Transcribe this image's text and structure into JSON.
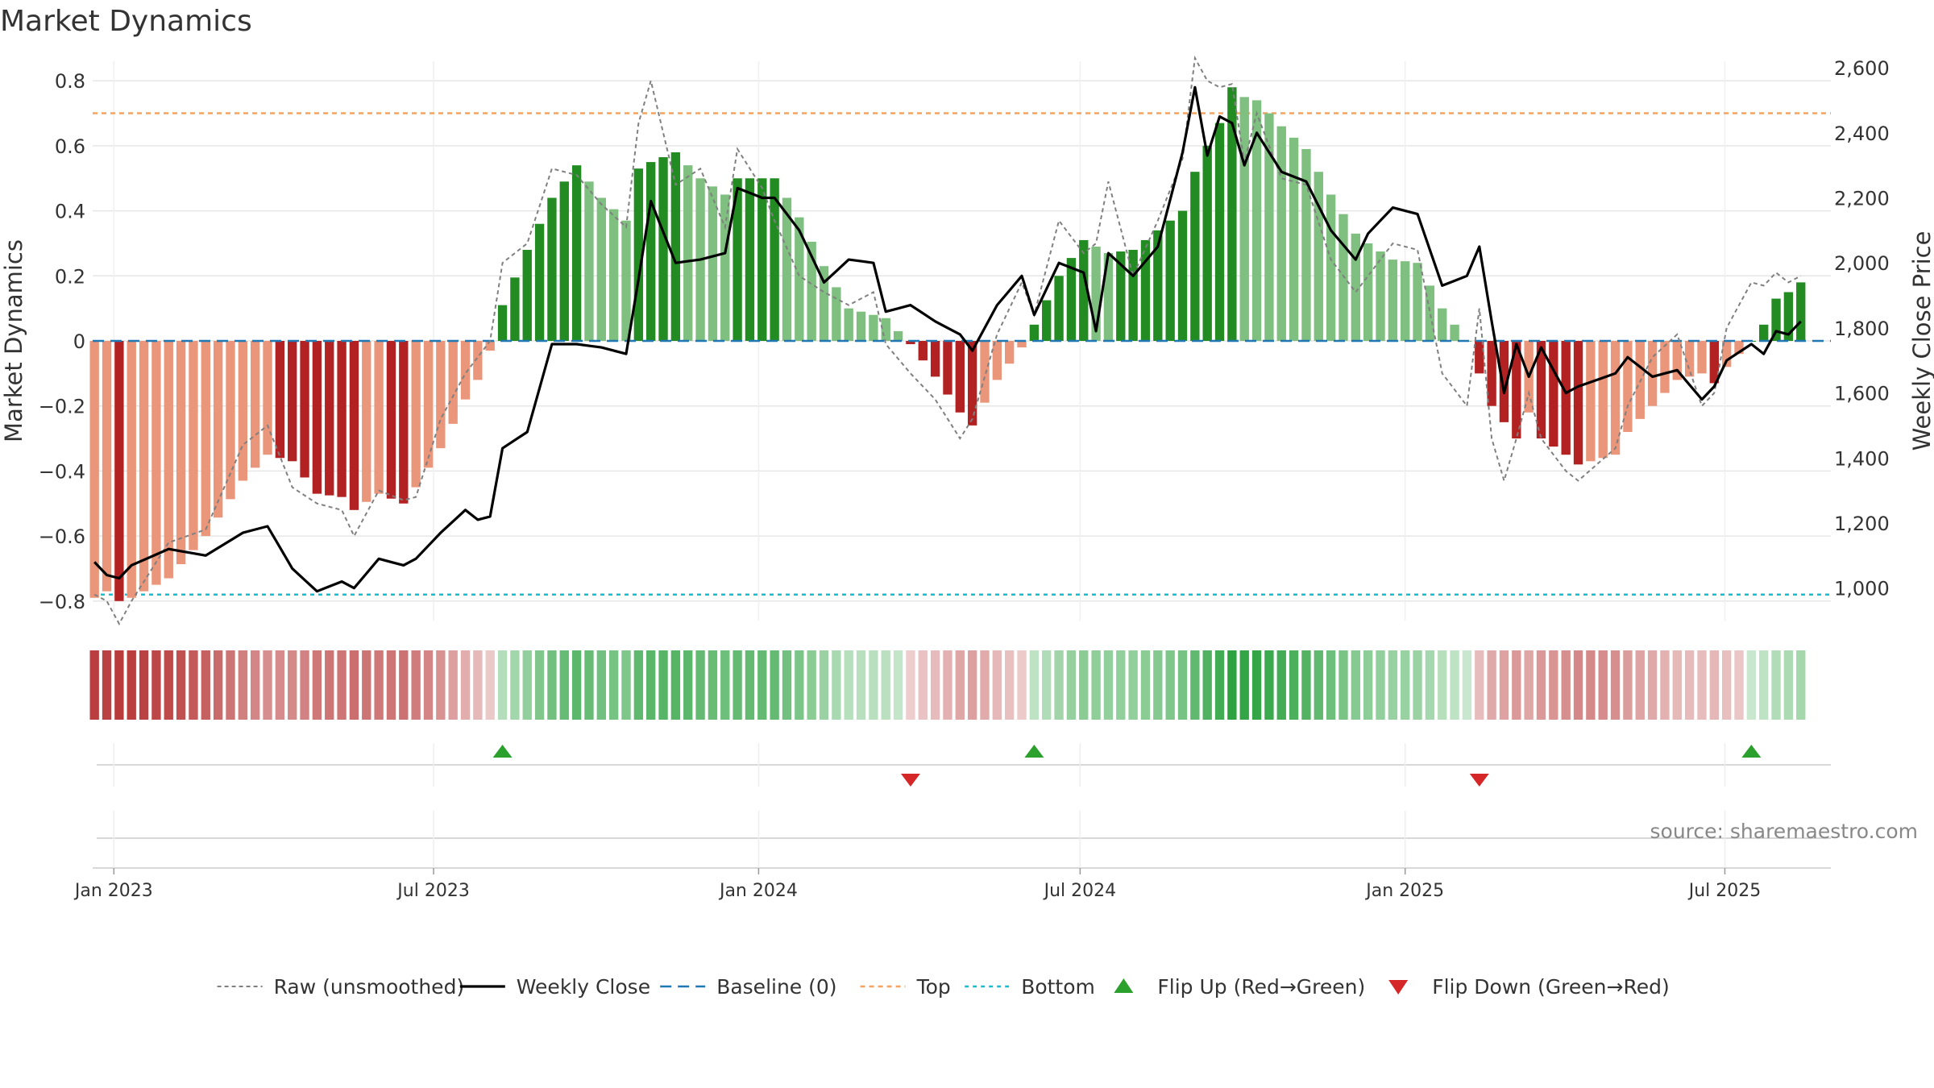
{
  "title": "Market Dynamics",
  "source": "source: sharemaestro.com",
  "colors": {
    "green_strong": "#228B22",
    "green_light": "#7FBF7F",
    "red_strong": "#B22222",
    "red_light": "#E9967A",
    "close_line": "#000000",
    "raw_line": "#808080",
    "baseline": "#1F77B4",
    "top": "#F4A460",
    "bottom": "#17BECF",
    "flip_up": "#2CA02C",
    "flip_down": "#D62728",
    "grid": "#E6E6E6",
    "axis_text": "#333333"
  },
  "chart_data": {
    "type": "bar",
    "title": "Market Dynamics",
    "ylabel": "Market Dynamics",
    "y2label": "Weekly Close Price",
    "ylim": [
      -0.86,
      0.86
    ],
    "y2lim": [
      900,
      2620
    ],
    "yticks": [
      -0.8,
      -0.6,
      -0.4,
      -0.2,
      0,
      0.2,
      0.4,
      0.6,
      0.8
    ],
    "yticklabels": [
      "−0.8",
      "−0.6",
      "−0.4",
      "−0.2",
      "0",
      "0.2",
      "0.4",
      "0.6",
      "0.8"
    ],
    "y2ticks": [
      1000,
      1200,
      1400,
      1600,
      1800,
      2000,
      2200,
      2400,
      2600
    ],
    "y2ticklabels": [
      "1,000",
      "1,200",
      "1,400",
      "1,600",
      "1,800",
      "2,000",
      "2,200",
      "2,400",
      "2,600"
    ],
    "xrange": [
      "2022-12-20",
      "2025-08-30"
    ],
    "xticks": [
      "2023-01-01",
      "2023-07-01",
      "2024-01-01",
      "2024-07-01",
      "2025-01-01",
      "2025-07-01"
    ],
    "xticklabels": [
      "Jan 2023",
      "Jul 2023",
      "Jan 2024",
      "Jul 2024",
      "Jan 2025",
      "Jul 2025"
    ],
    "top": 0.7,
    "bottom": -0.78,
    "baseline": 0,
    "grid": true,
    "legend_position": "bottom-center",
    "legend": [
      {
        "label": "Raw (unsmoothed)",
        "style": "raw"
      },
      {
        "label": "Weekly Close",
        "style": "close"
      },
      {
        "label": "Baseline (0)",
        "style": "baseline"
      },
      {
        "label": "Top",
        "style": "top"
      },
      {
        "label": "Bottom",
        "style": "bottom"
      },
      {
        "label": "Flip Up (Red→Green)",
        "style": "flip_up"
      },
      {
        "label": "Flip Down (Green→Red)",
        "style": "flip_down"
      }
    ],
    "anchors": [
      {
        "date": "2022-12-21",
        "md": -0.79,
        "raw": -0.78,
        "close": 1080
      },
      {
        "date": "2022-12-28",
        "md": -0.77,
        "raw": -0.8,
        "close": 1040
      },
      {
        "date": "2023-01-04",
        "md": -0.8,
        "raw": -0.87,
        "close": 1030
      },
      {
        "date": "2023-01-11",
        "md": -0.79,
        "raw": -0.8,
        "close": 1070
      },
      {
        "date": "2023-02-01",
        "md": -0.73,
        "raw": -0.62,
        "close": 1120
      },
      {
        "date": "2023-02-22",
        "md": -0.6,
        "raw": -0.58,
        "close": 1100
      },
      {
        "date": "2023-03-15",
        "md": -0.43,
        "raw": -0.32,
        "close": 1170
      },
      {
        "date": "2023-03-29",
        "md": -0.35,
        "raw": -0.26,
        "close": 1190
      },
      {
        "date": "2023-04-12",
        "md": -0.37,
        "raw": -0.45,
        "close": 1060
      },
      {
        "date": "2023-04-26",
        "md": -0.47,
        "raw": -0.5,
        "close": 990
      },
      {
        "date": "2023-05-10",
        "md": -0.48,
        "raw": -0.52,
        "close": 1020
      },
      {
        "date": "2023-05-17",
        "md": -0.52,
        "raw": -0.6,
        "close": 1000
      },
      {
        "date": "2023-05-31",
        "md": -0.47,
        "raw": -0.46,
        "close": 1090
      },
      {
        "date": "2023-06-14",
        "md": -0.5,
        "raw": -0.49,
        "close": 1070
      },
      {
        "date": "2023-06-21",
        "md": -0.45,
        "raw": -0.48,
        "close": 1090
      },
      {
        "date": "2023-07-05",
        "md": -0.33,
        "raw": -0.24,
        "close": 1170
      },
      {
        "date": "2023-07-19",
        "md": -0.18,
        "raw": -0.1,
        "close": 1240
      },
      {
        "date": "2023-07-26",
        "md": -0.12,
        "raw": -0.05,
        "close": 1210
      },
      {
        "date": "2023-08-02",
        "md": -0.03,
        "raw": 0.0,
        "close": 1220
      },
      {
        "date": "2023-08-09",
        "md": 0.11,
        "raw": 0.24,
        "close": 1430
      },
      {
        "date": "2023-08-23",
        "md": 0.28,
        "raw": 0.3,
        "close": 1480
      },
      {
        "date": "2023-09-06",
        "md": 0.44,
        "raw": 0.53,
        "close": 1750
      },
      {
        "date": "2023-09-20",
        "md": 0.54,
        "raw": 0.51,
        "close": 1750
      },
      {
        "date": "2023-10-04",
        "md": 0.44,
        "raw": 0.42,
        "close": 1740
      },
      {
        "date": "2023-10-18",
        "md": 0.37,
        "raw": 0.35,
        "close": 1720
      },
      {
        "date": "2023-10-25",
        "md": 0.53,
        "raw": 0.67,
        "close": 1950
      },
      {
        "date": "2023-11-01",
        "md": 0.55,
        "raw": 0.8,
        "close": 2190
      },
      {
        "date": "2023-11-15",
        "md": 0.58,
        "raw": 0.48,
        "close": 2000
      },
      {
        "date": "2023-11-29",
        "md": 0.5,
        "raw": 0.53,
        "close": 2010
      },
      {
        "date": "2023-12-13",
        "md": 0.45,
        "raw": 0.35,
        "close": 2030
      },
      {
        "date": "2023-12-20",
        "md": 0.5,
        "raw": 0.59,
        "close": 2230
      },
      {
        "date": "2024-01-03",
        "md": 0.5,
        "raw": 0.47,
        "close": 2200
      },
      {
        "date": "2024-01-10",
        "md": 0.5,
        "raw": 0.37,
        "close": 2200
      },
      {
        "date": "2024-01-24",
        "md": 0.38,
        "raw": 0.2,
        "close": 2100
      },
      {
        "date": "2024-02-07",
        "md": 0.23,
        "raw": 0.15,
        "close": 1940
      },
      {
        "date": "2024-02-21",
        "md": 0.1,
        "raw": 0.11,
        "close": 2010
      },
      {
        "date": "2024-03-06",
        "md": 0.08,
        "raw": 0.15,
        "close": 2000
      },
      {
        "date": "2024-03-13",
        "md": 0.07,
        "raw": -0.01,
        "close": 1850
      },
      {
        "date": "2024-03-27",
        "md": -0.01,
        "raw": -0.1,
        "close": 1870
      },
      {
        "date": "2024-04-10",
        "md": -0.11,
        "raw": -0.18,
        "close": 1820
      },
      {
        "date": "2024-04-24",
        "md": -0.22,
        "raw": -0.3,
        "close": 1780
      },
      {
        "date": "2024-05-01",
        "md": -0.26,
        "raw": -0.24,
        "close": 1730
      },
      {
        "date": "2024-05-15",
        "md": -0.12,
        "raw": 0.02,
        "close": 1870
      },
      {
        "date": "2024-05-29",
        "md": -0.02,
        "raw": 0.18,
        "close": 1960
      },
      {
        "date": "2024-06-05",
        "md": 0.05,
        "raw": 0.08,
        "close": 1840
      },
      {
        "date": "2024-06-19",
        "md": 0.2,
        "raw": 0.37,
        "close": 2000
      },
      {
        "date": "2024-07-03",
        "md": 0.31,
        "raw": 0.27,
        "close": 1970
      },
      {
        "date": "2024-07-10",
        "md": 0.29,
        "raw": 0.3,
        "close": 1790
      },
      {
        "date": "2024-07-17",
        "md": 0.27,
        "raw": 0.49,
        "close": 2030
      },
      {
        "date": "2024-07-31",
        "md": 0.28,
        "raw": 0.2,
        "close": 1960
      },
      {
        "date": "2024-08-14",
        "md": 0.34,
        "raw": 0.37,
        "close": 2050
      },
      {
        "date": "2024-08-28",
        "md": 0.4,
        "raw": 0.56,
        "close": 2340
      },
      {
        "date": "2024-09-04",
        "md": 0.52,
        "raw": 0.87,
        "close": 2540
      },
      {
        "date": "2024-09-11",
        "md": 0.6,
        "raw": 0.8,
        "close": 2330
      },
      {
        "date": "2024-09-18",
        "md": 0.67,
        "raw": 0.78,
        "close": 2450
      },
      {
        "date": "2024-09-25",
        "md": 0.78,
        "raw": 0.79,
        "close": 2430
      },
      {
        "date": "2024-10-02",
        "md": 0.75,
        "raw": 0.55,
        "close": 2300
      },
      {
        "date": "2024-10-09",
        "md": 0.74,
        "raw": 0.7,
        "close": 2400
      },
      {
        "date": "2024-10-23",
        "md": 0.66,
        "raw": 0.5,
        "close": 2280
      },
      {
        "date": "2024-11-06",
        "md": 0.59,
        "raw": 0.48,
        "close": 2250
      },
      {
        "date": "2024-11-20",
        "md": 0.45,
        "raw": 0.25,
        "close": 2100
      },
      {
        "date": "2024-12-04",
        "md": 0.33,
        "raw": 0.15,
        "close": 2010
      },
      {
        "date": "2024-12-11",
        "md": 0.3,
        "raw": 0.2,
        "close": 2090
      },
      {
        "date": "2024-12-25",
        "md": 0.25,
        "raw": 0.3,
        "close": 2170
      },
      {
        "date": "2025-01-08",
        "md": 0.24,
        "raw": 0.28,
        "close": 2150
      },
      {
        "date": "2025-01-22",
        "md": 0.1,
        "raw": -0.1,
        "close": 1930
      },
      {
        "date": "2025-02-05",
        "md": 0.0,
        "raw": -0.2,
        "close": 1960
      },
      {
        "date": "2025-02-12",
        "md": -0.1,
        "raw": 0.1,
        "close": 2050
      },
      {
        "date": "2025-02-19",
        "md": -0.2,
        "raw": -0.3,
        "close": 1820
      },
      {
        "date": "2025-02-26",
        "md": -0.25,
        "raw": -0.43,
        "close": 1600
      },
      {
        "date": "2025-03-05",
        "md": -0.3,
        "raw": -0.3,
        "close": 1750
      },
      {
        "date": "2025-03-12",
        "md": -0.22,
        "raw": -0.16,
        "close": 1650
      },
      {
        "date": "2025-03-19",
        "md": -0.3,
        "raw": -0.3,
        "close": 1740
      },
      {
        "date": "2025-04-02",
        "md": -0.35,
        "raw": -0.4,
        "close": 1600
      },
      {
        "date": "2025-04-09",
        "md": -0.38,
        "raw": -0.43,
        "close": 1620
      },
      {
        "date": "2025-04-30",
        "md": -0.35,
        "raw": -0.33,
        "close": 1660
      },
      {
        "date": "2025-05-07",
        "md": -0.28,
        "raw": -0.2,
        "close": 1710
      },
      {
        "date": "2025-05-21",
        "md": -0.2,
        "raw": -0.05,
        "close": 1650
      },
      {
        "date": "2025-06-04",
        "md": -0.12,
        "raw": 0.02,
        "close": 1670
      },
      {
        "date": "2025-06-18",
        "md": -0.1,
        "raw": -0.2,
        "close": 1580
      },
      {
        "date": "2025-06-25",
        "md": -0.13,
        "raw": -0.16,
        "close": 1620
      },
      {
        "date": "2025-07-02",
        "md": -0.08,
        "raw": 0.04,
        "close": 1700
      },
      {
        "date": "2025-07-16",
        "md": 0.0,
        "raw": 0.18,
        "close": 1750
      },
      {
        "date": "2025-07-23",
        "md": 0.05,
        "raw": 0.17,
        "close": 1720
      },
      {
        "date": "2025-07-30",
        "md": 0.13,
        "raw": 0.21,
        "close": 1790
      },
      {
        "date": "2025-08-06",
        "md": 0.15,
        "raw": 0.18,
        "close": 1780
      },
      {
        "date": "2025-08-13",
        "md": 0.18,
        "raw": 0.2,
        "close": 1820
      }
    ],
    "xrange_end_override": "2025-08-30"
  }
}
